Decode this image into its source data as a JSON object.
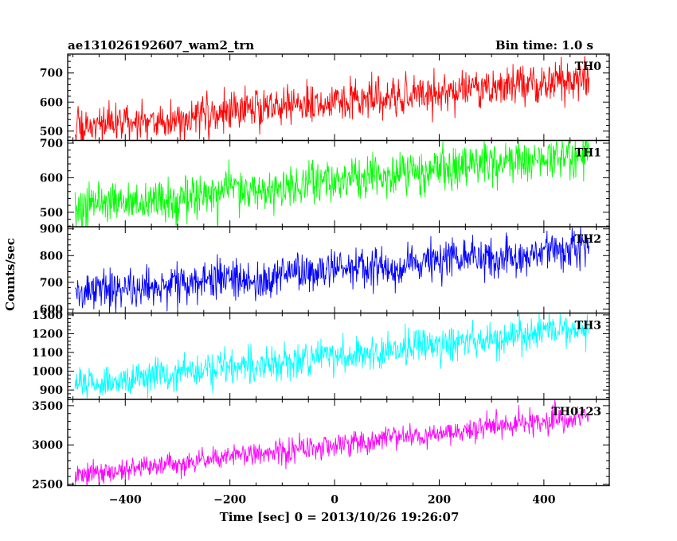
{
  "title_left": "ae131026192607_wam2_trn",
  "title_right": "Bin time: 1.0 s",
  "chart_data": {
    "type": "line",
    "x_label": "Time [sec] 0 = 2013/10/26 19:26:07",
    "y_label": "Counts/sec",
    "x_range": [
      -510,
      525
    ],
    "x_ticks": [
      -400,
      -200,
      0,
      200,
      400
    ],
    "x_start": -496,
    "x_end": 486,
    "bin_time_s": 1.0,
    "grid": false,
    "panels": [
      {
        "label": "TH0",
        "color": "#ff0000",
        "y_range": [
          468,
          765
        ],
        "y_ticks": [
          500,
          600,
          700
        ],
        "trend_start": 510,
        "trend_end": 682,
        "noise": 35
      },
      {
        "label": "TH1",
        "color": "#00ff00",
        "y_range": [
          458,
          708
        ],
        "y_ticks": [
          500,
          600,
          700
        ],
        "trend_start": 515,
        "trend_end": 665,
        "noise": 32
      },
      {
        "label": "TH2",
        "color": "#0000ff",
        "y_range": [
          585,
          908
        ],
        "y_ticks": [
          600,
          700,
          800,
          900
        ],
        "trend_start": 660,
        "trend_end": 825,
        "noise": 38
      },
      {
        "label": "TH3",
        "color": "#00ffff",
        "y_range": [
          850,
          1310
        ],
        "y_ticks": [
          900,
          1000,
          1100,
          1200,
          1300
        ],
        "trend_start": 925,
        "trend_end": 1230,
        "noise": 48
      },
      {
        "label": "TH0123",
        "color": "#ff00ff",
        "y_range": [
          2480,
          3580
        ],
        "y_ticks": [
          2500,
          3000,
          3500
        ],
        "trend_start": 2610,
        "trend_end": 3370,
        "noise": 75
      }
    ]
  }
}
